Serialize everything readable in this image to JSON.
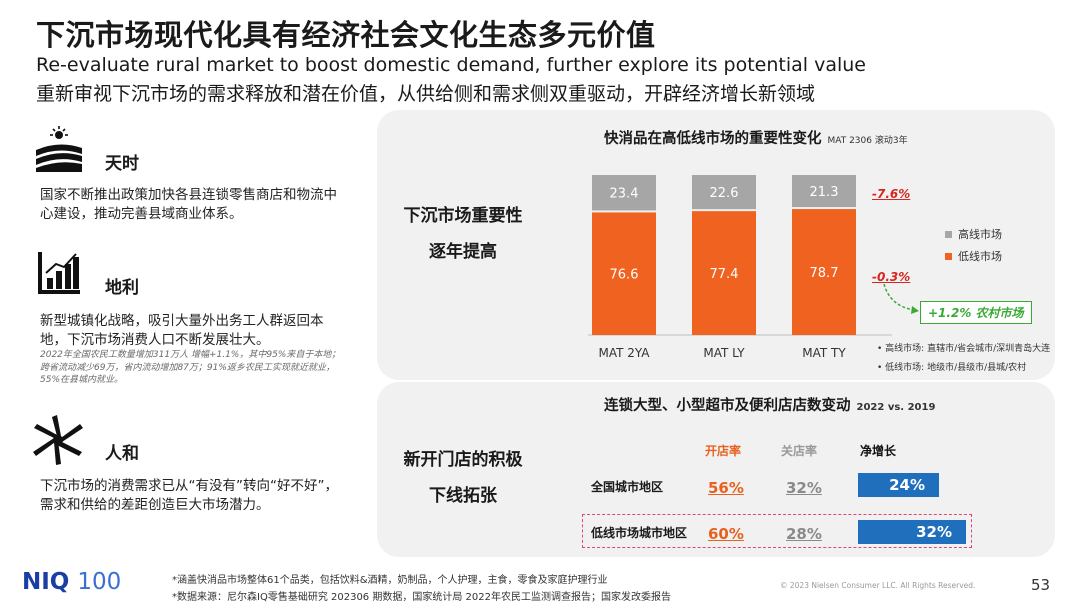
{
  "header": {
    "title": "下沉市场现代化具有经济社会文化生态多元价值",
    "subtitle_en": "Re-evaluate rural market to boost domestic demand, further explore its potential value",
    "subtitle_cn": "重新审视下沉市场的需求释放和潜在价值，从供给侧和需求侧双重驱动，开辟经济增长新领域"
  },
  "sections": [
    {
      "heading": "天时",
      "text": "国家不断推出政策加快各县连锁零售商店和物流中心建设，推动完善县域商业体系。",
      "icon": "farm-sun-icon"
    },
    {
      "heading": "地利",
      "text": "新型城镇化战略，吸引大量外出务工人群返回本地，下沉市场消费人口不断发展壮大。",
      "note": "2022年全国农民工数量增加311万人 增幅+1.1%，其中95%来自于本地；跨省流动减少69万，省内流动增加87万；91%返乡农民工实现就近就业，55%在县城内就业。",
      "icon": "growth-chart-icon"
    },
    {
      "heading": "人和",
      "text": "下沉市场的消费需求已从“有没有”转向“好不好”，需求和供给的差距创造巨大市场潜力。",
      "icon": "teamwork-hands-icon"
    }
  ],
  "panel1": {
    "label_line1": "下沉市场重要性",
    "label_line2": "逐年提高",
    "chart_title": "快消品在高低线市场的重要性变化",
    "chart_title_note": "MAT 2306 滚动3年",
    "legend_high_note": "高线市场: 直辖市/省会城市/深圳青岛大连",
    "legend_low_note": "低线市场: 地级市/县级市/县城/农村",
    "change_high": "-7.6%",
    "change_low": "-0.3%",
    "rural_note": "+1.2% 农村市场"
  },
  "chart_data": {
    "type": "bar",
    "stacked": true,
    "categories": [
      "MAT 2YA",
      "MAT LY",
      "MAT TY"
    ],
    "series": [
      {
        "name": "低线市场",
        "values": [
          76.6,
          77.4,
          78.7
        ],
        "color": "#f0621f"
      },
      {
        "name": "高线市场",
        "values": [
          23.4,
          22.6,
          21.3
        ],
        "color": "#a6a6a6"
      }
    ],
    "ylim": [
      0,
      100
    ],
    "legend": "right"
  },
  "panel2": {
    "label_line1": "新开门店的积极",
    "label_line2": "下线拓张",
    "title": "连锁大型、小型超市及便利店店数变动",
    "title_note": "2022 vs. 2019",
    "col_open": "开店率",
    "col_close": "关店率",
    "col_net": "净增长",
    "rows": [
      {
        "label": "全国城市地区",
        "open": "56%",
        "close": "32%",
        "net": "24%",
        "net_value": 24
      },
      {
        "label": "低线市场城市地区",
        "open": "60%",
        "close": "28%",
        "net": "32%",
        "net_value": 32
      }
    ]
  },
  "footer": {
    "logo_main": "NIQ",
    "logo_num": "100",
    "note1": "*涵盖快消品市场整体61个品类，包括饮料&酒精，奶制品，个人护理，主食，零食及家庭护理行业",
    "note2": "*数据来源：尼尔森IQ零售基础研究 202306 期数据，国家统计局 2022年农民工监测调查报告；国家发改委报告",
    "copyright": "© 2023 Nielsen Consumer LLC. All Rights Reserved.",
    "page": "53"
  },
  "colors": {
    "orange": "#f0621f",
    "grey": "#a6a6a6",
    "blue": "#1f6fbd",
    "red": "#d6261e",
    "green": "#3aaa35",
    "pink": "#e0457b"
  }
}
